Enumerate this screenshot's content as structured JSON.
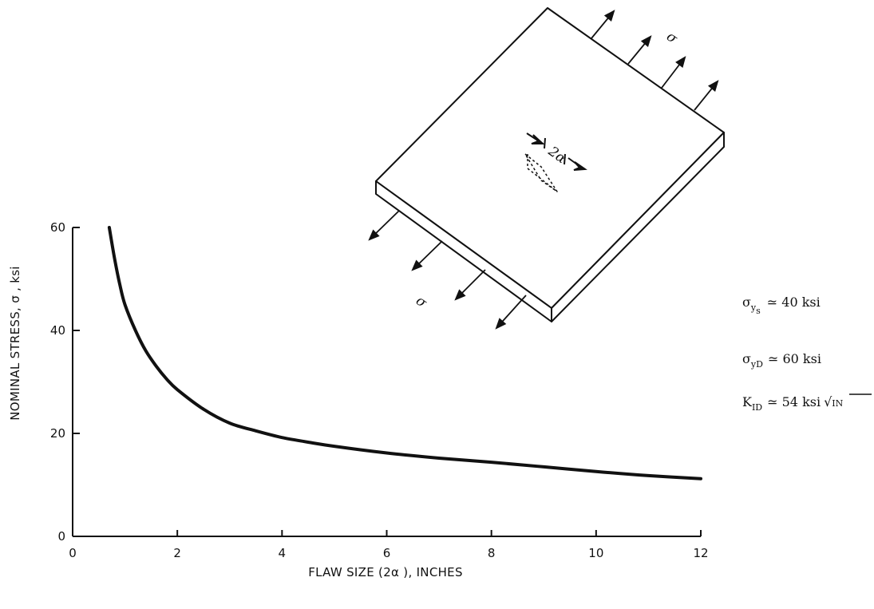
{
  "chart_data": {
    "type": "line",
    "title": "",
    "xlabel": "FLAW SIZE (2α ), INCHES",
    "ylabel": "NOMINAL STRESS, σ , ksi",
    "xlim": [
      0,
      12
    ],
    "ylim": [
      0,
      60
    ],
    "xticks": [
      "0",
      "2",
      "4",
      "6",
      "8",
      "10",
      "12"
    ],
    "yticks": [
      "0",
      "20",
      "40",
      "60"
    ],
    "grid": false,
    "series": [
      {
        "x": [
          0.7,
          0.8,
          0.9,
          1.0,
          1.2,
          1.4,
          1.6,
          1.8,
          2.0,
          2.5,
          3.0,
          3.5,
          4.0,
          4.5,
          5.0,
          6.0,
          7.0,
          8.0,
          9.0,
          10.0,
          11.0,
          12.0
        ],
        "y": [
          60,
          54,
          49,
          45,
          40,
          36,
          33,
          30.5,
          28.5,
          24.7,
          22,
          20.5,
          19.2,
          18.3,
          17.5,
          16.2,
          15.2,
          14.4,
          13.5,
          12.6,
          11.8,
          11.2
        ]
      }
    ],
    "annotations": {
      "sigma_ys": {
        "symbol": "σ",
        "sub": "y",
        "subsub": "s",
        "text": "≃ 40 ksi"
      },
      "sigma_yd": {
        "symbol": "σ",
        "sub": "yD",
        "text": "≃ 60 ksi"
      },
      "k_id": {
        "symbol": "K",
        "sub": "ID",
        "text": "≃ 54 ksi",
        "root": "IN"
      }
    },
    "diagram": {
      "stress_label": "σ",
      "flaw_label": "2α"
    }
  },
  "colors": {
    "ink": "#111111",
    "background": "#ffffff"
  }
}
